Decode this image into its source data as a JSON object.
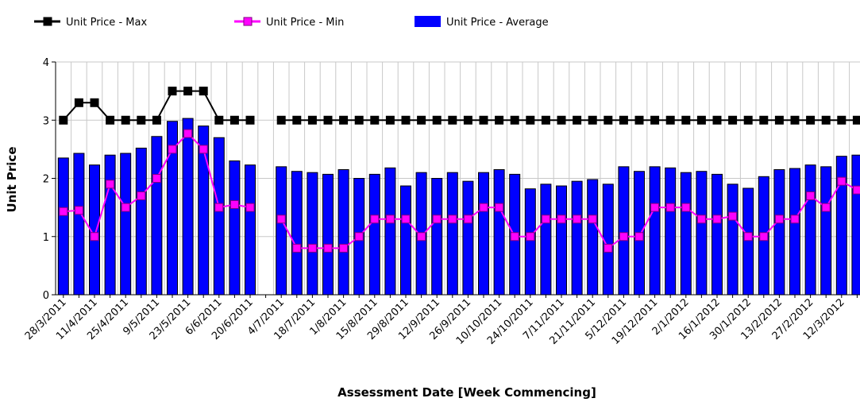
{
  "chart_data": {
    "type": "bar",
    "x_label": "Assessment Date [Week Commencing]",
    "y_label": "Unit Price",
    "categories": [
      "28/3/2011",
      null,
      "11/4/2011",
      null,
      "25/4/2011",
      null,
      "9/5/2011",
      null,
      "23/5/2011",
      null,
      "6/6/2011",
      null,
      "20/6/2011",
      null,
      "4/7/2011",
      null,
      "18/7/2011",
      null,
      "1/8/2011",
      null,
      "15/8/2011",
      null,
      "29/8/2011",
      null,
      "12/9/2011",
      null,
      "26/9/2011",
      null,
      "10/10/2011",
      null,
      "24/10/2011",
      null,
      "7/11/2011",
      null,
      "21/11/2011",
      null,
      "5/12/2011",
      null,
      "19/12/2011",
      null,
      "2/1/2012",
      null,
      "16/1/2012",
      null,
      "30/1/2012",
      null,
      "13/2/2012",
      null,
      "27/2/2012",
      null,
      "12/3/2012",
      null
    ],
    "series": [
      {
        "name": "Unit Price - Max",
        "type": "line",
        "color": "#000000",
        "values": [
          3,
          3.3,
          3.3,
          3,
          3,
          3,
          3,
          3.5,
          3.5,
          3.5,
          3,
          3,
          3,
          null,
          3,
          3,
          3,
          3,
          3,
          3,
          3,
          3,
          3,
          3,
          3,
          3,
          3,
          3,
          3,
          3,
          3,
          3,
          3,
          3,
          3,
          3,
          3,
          3,
          3,
          3,
          3,
          3,
          3,
          3,
          3,
          3,
          3,
          3,
          3,
          3,
          3,
          3
        ]
      },
      {
        "name": "Unit Price - Min",
        "type": "line",
        "color": "#ff00ff",
        "values": [
          1.43,
          1.45,
          1.0,
          1.9,
          1.5,
          1.7,
          2.0,
          2.5,
          2.77,
          2.5,
          1.5,
          1.55,
          1.5,
          null,
          1.3,
          0.8,
          0.8,
          0.8,
          0.8,
          1.0,
          1.3,
          1.3,
          1.3,
          1.0,
          1.3,
          1.3,
          1.3,
          1.5,
          1.5,
          1.0,
          1.0,
          1.3,
          1.3,
          1.3,
          1.3,
          0.8,
          1.0,
          1.0,
          1.5,
          1.5,
          1.5,
          1.3,
          1.3,
          1.35,
          1.0,
          1.0,
          1.3,
          1.3,
          1.7,
          1.5,
          1.95,
          1.8
        ]
      },
      {
        "name": "Unit Price - Average",
        "type": "bar",
        "color": "#0000ff",
        "values": [
          2.35,
          2.43,
          2.23,
          2.4,
          2.43,
          2.52,
          2.72,
          2.98,
          3.03,
          2.9,
          2.7,
          2.3,
          2.23,
          null,
          2.2,
          2.12,
          2.1,
          2.07,
          2.15,
          2.0,
          2.07,
          2.18,
          1.87,
          2.1,
          2.0,
          2.1,
          1.95,
          2.1,
          2.15,
          2.07,
          1.82,
          1.9,
          1.87,
          1.95,
          1.98,
          1.9,
          2.2,
          2.12,
          2.2,
          2.18,
          2.1,
          2.12,
          2.07,
          1.9,
          1.83,
          2.03,
          2.15,
          2.17,
          2.23,
          2.2,
          2.38,
          2.4
        ]
      }
    ],
    "ylim": [
      0,
      4
    ],
    "yticks": [
      0,
      1,
      2,
      3,
      4
    ],
    "grid": true
  }
}
